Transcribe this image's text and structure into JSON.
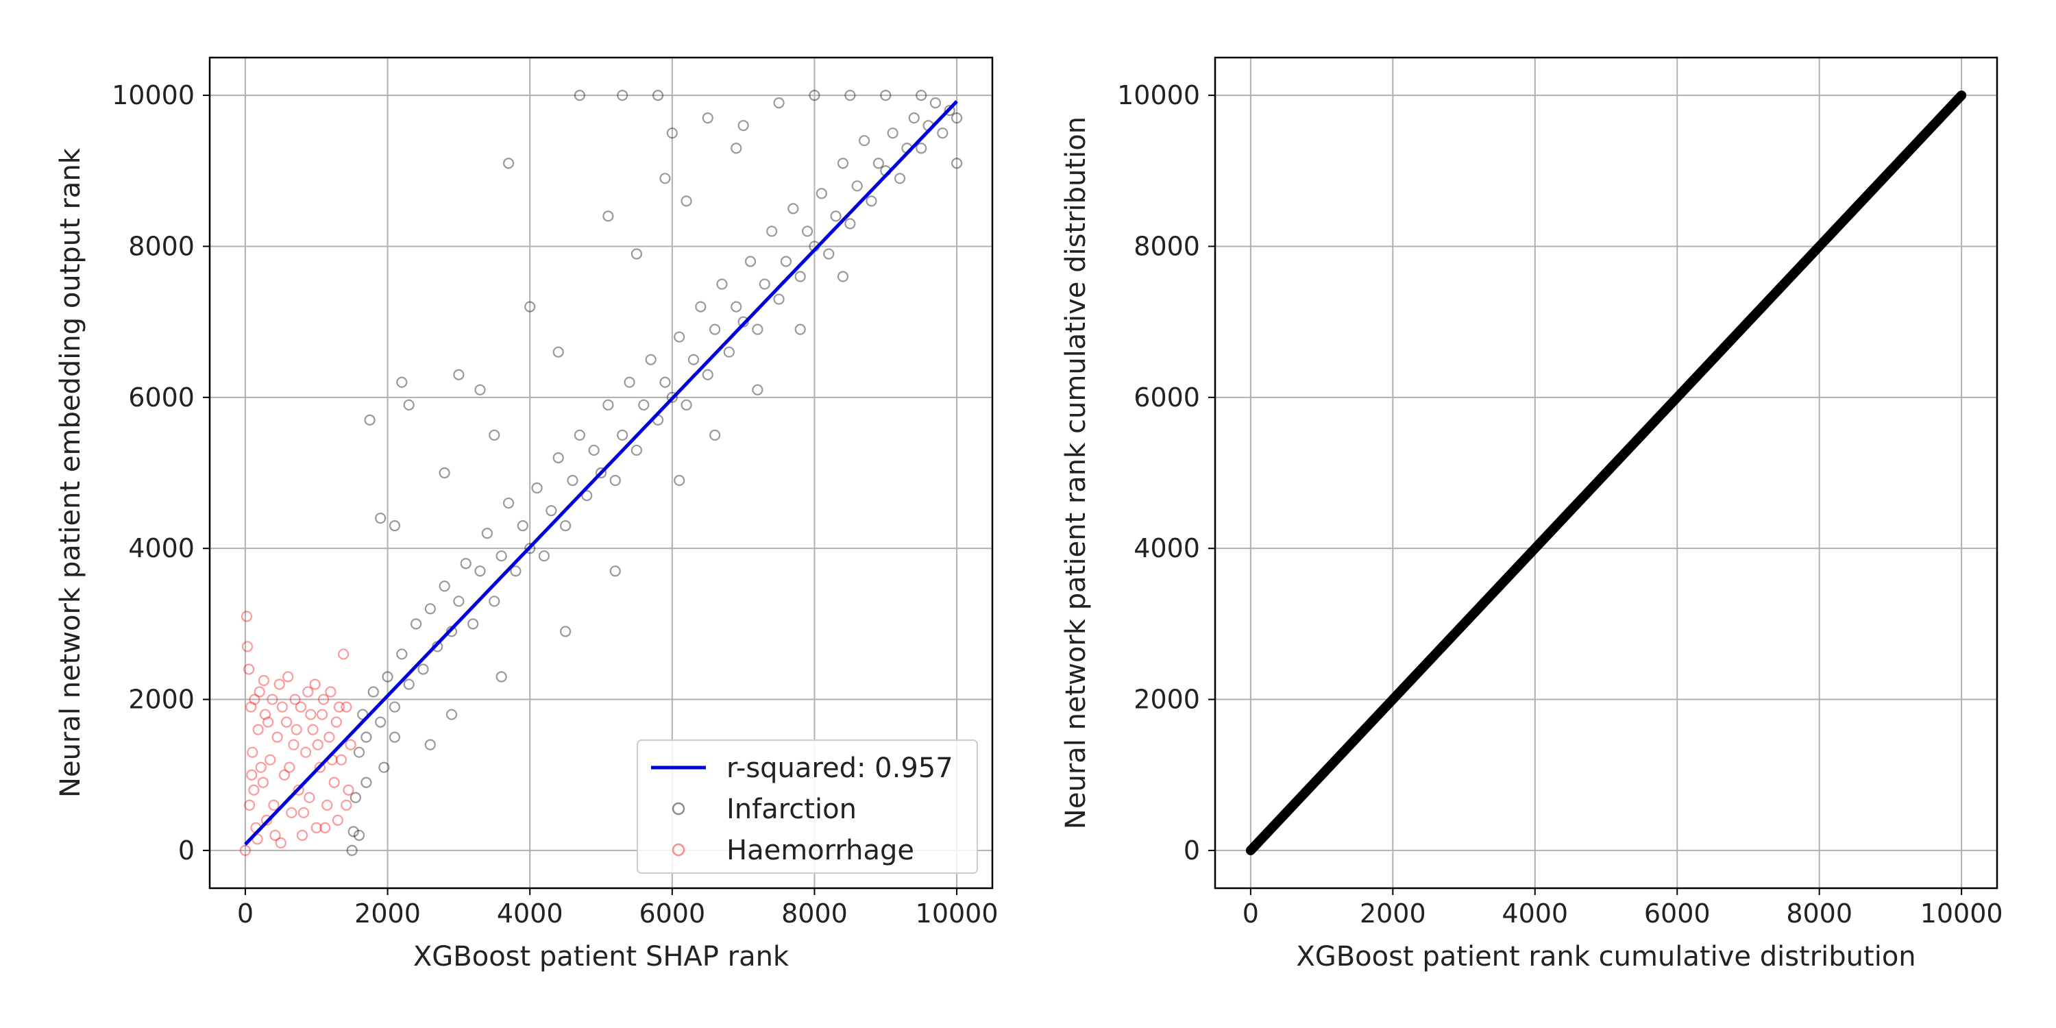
{
  "chart_data": [
    {
      "type": "scatter",
      "xlabel": "XGBoost patient SHAP rank",
      "ylabel": "Neural network patient embedding output rank",
      "xlim": [
        -500,
        10500
      ],
      "ylim": [
        -500,
        10500
      ],
      "xticks": [
        "0",
        "2000",
        "4000",
        "6000",
        "8000",
        "10000"
      ],
      "yticks": [
        "0",
        "2000",
        "4000",
        "6000",
        "8000",
        "10000"
      ],
      "xtick_values": [
        0,
        2000,
        4000,
        6000,
        8000,
        10000
      ],
      "ytick_values": [
        0,
        2000,
        4000,
        6000,
        8000,
        10000
      ],
      "grid": true,
      "legend_position": "bottom-right",
      "fit_line": {
        "name": "r-squared: 0.957",
        "color": "#0000dd",
        "x": [
          0,
          10000
        ],
        "y": [
          80,
          9920
        ]
      },
      "series": [
        {
          "name": "Infarction",
          "color": "#000000",
          "marker": "hollow-circle",
          "points": [
            [
              1500,
              0
            ],
            [
              1520,
              250
            ],
            [
              1550,
              700
            ],
            [
              1600,
              1300
            ],
            [
              1650,
              1800
            ],
            [
              1700,
              1500
            ],
            [
              1800,
              2100
            ],
            [
              1900,
              1700
            ],
            [
              2000,
              2300
            ],
            [
              2100,
              1900
            ],
            [
              2200,
              2600
            ],
            [
              2300,
              2200
            ],
            [
              2400,
              3000
            ],
            [
              2500,
              2400
            ],
            [
              2600,
              3200
            ],
            [
              2700,
              2700
            ],
            [
              2800,
              3500
            ],
            [
              2900,
              2900
            ],
            [
              3000,
              3300
            ],
            [
              3100,
              3800
            ],
            [
              3200,
              3000
            ],
            [
              3300,
              3700
            ],
            [
              3400,
              4200
            ],
            [
              3500,
              3300
            ],
            [
              3600,
              3900
            ],
            [
              3700,
              4600
            ],
            [
              3800,
              3700
            ],
            [
              3900,
              4300
            ],
            [
              4000,
              4000
            ],
            [
              4100,
              4800
            ],
            [
              4200,
              3900
            ],
            [
              4300,
              4500
            ],
            [
              4400,
              5200
            ],
            [
              4500,
              4300
            ],
            [
              4600,
              4900
            ],
            [
              4700,
              5500
            ],
            [
              4800,
              4700
            ],
            [
              4900,
              5300
            ],
            [
              5000,
              5000
            ],
            [
              5100,
              5900
            ],
            [
              5200,
              4900
            ],
            [
              5300,
              5500
            ],
            [
              5400,
              6200
            ],
            [
              5500,
              5300
            ],
            [
              5600,
              5900
            ],
            [
              5700,
              6500
            ],
            [
              5800,
              5700
            ],
            [
              5900,
              6200
            ],
            [
              6000,
              6000
            ],
            [
              6100,
              6800
            ],
            [
              6200,
              5900
            ],
            [
              6300,
              6500
            ],
            [
              6400,
              7200
            ],
            [
              6500,
              6300
            ],
            [
              6600,
              6900
            ],
            [
              6700,
              7500
            ],
            [
              6800,
              6600
            ],
            [
              6900,
              7200
            ],
            [
              7000,
              7000
            ],
            [
              7100,
              7800
            ],
            [
              7200,
              6900
            ],
            [
              7300,
              7500
            ],
            [
              7400,
              8200
            ],
            [
              7500,
              7300
            ],
            [
              7600,
              7800
            ],
            [
              7700,
              8500
            ],
            [
              7800,
              7600
            ],
            [
              7900,
              8200
            ],
            [
              8000,
              8000
            ],
            [
              8100,
              8700
            ],
            [
              8200,
              7900
            ],
            [
              8300,
              8400
            ],
            [
              8400,
              9100
            ],
            [
              8500,
              8300
            ],
            [
              8600,
              8800
            ],
            [
              8700,
              9400
            ],
            [
              8800,
              8600
            ],
            [
              8900,
              9100
            ],
            [
              9000,
              9000
            ],
            [
              9100,
              9500
            ],
            [
              9200,
              8900
            ],
            [
              9300,
              9300
            ],
            [
              9400,
              9700
            ],
            [
              9500,
              9300
            ],
            [
              9600,
              9600
            ],
            [
              9700,
              9900
            ],
            [
              9800,
              9500
            ],
            [
              9900,
              9800
            ],
            [
              10000,
              9700
            ],
            [
              10000,
              9100
            ],
            [
              2200,
              6200
            ],
            [
              2300,
              5900
            ],
            [
              3000,
              6300
            ],
            [
              3700,
              9100
            ],
            [
              4700,
              10000
            ],
            [
              5300,
              10000
            ],
            [
              5800,
              10000
            ],
            [
              5100,
              8400
            ],
            [
              6000,
              9500
            ],
            [
              6500,
              9700
            ],
            [
              7000,
              9600
            ],
            [
              7500,
              9900
            ],
            [
              8000,
              10000
            ],
            [
              8500,
              10000
            ],
            [
              9000,
              10000
            ],
            [
              9500,
              10000
            ],
            [
              5900,
              8900
            ],
            [
              4000,
              7200
            ],
            [
              3500,
              5500
            ],
            [
              2800,
              5000
            ],
            [
              1750,
              5700
            ],
            [
              1900,
              4400
            ],
            [
              2100,
              4300
            ],
            [
              3300,
              6100
            ],
            [
              4400,
              6600
            ],
            [
              5500,
              7900
            ],
            [
              6200,
              8600
            ],
            [
              6900,
              9300
            ],
            [
              4500,
              2900
            ],
            [
              5200,
              3700
            ],
            [
              6100,
              4900
            ],
            [
              6600,
              5500
            ],
            [
              7200,
              6100
            ],
            [
              7800,
              6900
            ],
            [
              8400,
              7600
            ],
            [
              3600,
              2300
            ],
            [
              2900,
              1800
            ],
            [
              2600,
              1400
            ],
            [
              2100,
              1500
            ],
            [
              1950,
              1100
            ],
            [
              1700,
              900
            ],
            [
              1600,
              200
            ]
          ]
        },
        {
          "name": "Haemorrhage",
          "color": "#ff0000",
          "marker": "hollow-circle",
          "points": [
            [
              0,
              0
            ],
            [
              20,
              3100
            ],
            [
              30,
              2700
            ],
            [
              50,
              2400
            ],
            [
              80,
              1900
            ],
            [
              100,
              1300
            ],
            [
              120,
              800
            ],
            [
              150,
              300
            ],
            [
              180,
              1600
            ],
            [
              200,
              2100
            ],
            [
              250,
              900
            ],
            [
              280,
              1800
            ],
            [
              300,
              400
            ],
            [
              350,
              1200
            ],
            [
              380,
              2000
            ],
            [
              400,
              600
            ],
            [
              450,
              1500
            ],
            [
              480,
              2200
            ],
            [
              500,
              100
            ],
            [
              550,
              1000
            ],
            [
              580,
              1700
            ],
            [
              600,
              2300
            ],
            [
              650,
              500
            ],
            [
              680,
              1400
            ],
            [
              700,
              2000
            ],
            [
              750,
              800
            ],
            [
              780,
              1900
            ],
            [
              800,
              200
            ],
            [
              850,
              1300
            ],
            [
              880,
              2100
            ],
            [
              900,
              700
            ],
            [
              950,
              1600
            ],
            [
              980,
              2200
            ],
            [
              1000,
              300
            ],
            [
              1050,
              1100
            ],
            [
              1080,
              1800
            ],
            [
              1100,
              2000
            ],
            [
              1150,
              600
            ],
            [
              1180,
              1500
            ],
            [
              1200,
              2100
            ],
            [
              1250,
              900
            ],
            [
              1280,
              1700
            ],
            [
              1300,
              400
            ],
            [
              1350,
              1200
            ],
            [
              1380,
              2600
            ],
            [
              1420,
              1900
            ],
            [
              1450,
              800
            ],
            [
              1480,
              1400
            ],
            [
              60,
              600
            ],
            [
              130,
              2000
            ],
            [
              220,
              1100
            ],
            [
              320,
              1700
            ],
            [
              420,
              200
            ],
            [
              520,
              1900
            ],
            [
              620,
              1100
            ],
            [
              720,
              1600
            ],
            [
              820,
              500
            ],
            [
              920,
              1800
            ],
            [
              1020,
              1400
            ],
            [
              1120,
              300
            ],
            [
              1220,
              1200
            ],
            [
              1320,
              1900
            ],
            [
              1420,
              600
            ],
            [
              90,
              1000
            ],
            [
              170,
              150
            ],
            [
              260,
              2250
            ]
          ]
        }
      ]
    },
    {
      "type": "line",
      "xlabel": "XGBoost patient rank cumulative distribution",
      "ylabel": "Neural network patient rank cumulative distribution",
      "xlim": [
        -500,
        10500
      ],
      "ylim": [
        -500,
        10500
      ],
      "xticks": [
        "0",
        "2000",
        "4000",
        "6000",
        "8000",
        "10000"
      ],
      "yticks": [
        "0",
        "2000",
        "4000",
        "6000",
        "8000",
        "10000"
      ],
      "xtick_values": [
        0,
        2000,
        4000,
        6000,
        8000,
        10000
      ],
      "ytick_values": [
        0,
        2000,
        4000,
        6000,
        8000,
        10000
      ],
      "grid": true,
      "series": [
        {
          "color": "#000000",
          "x": [
            0,
            10000
          ],
          "y": [
            0,
            10000
          ]
        }
      ]
    }
  ]
}
